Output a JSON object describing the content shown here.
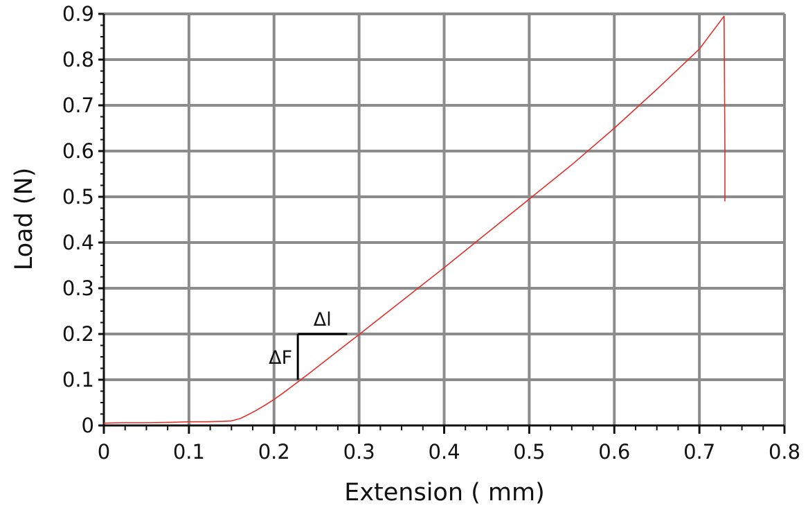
{
  "chart_data": {
    "type": "line",
    "title": "",
    "xlabel": "Extension ( mm)",
    "ylabel": "Load (N)",
    "xlim": [
      0,
      0.8
    ],
    "ylim": [
      0,
      0.9
    ],
    "x_ticks": [
      "0",
      "0.1",
      "0.2",
      "0.3",
      "0.4",
      "0.5",
      "0.6",
      "0.7",
      "0.8"
    ],
    "y_ticks": [
      "0",
      "0.1",
      "0.2",
      "0.3",
      "0.4",
      "0.5",
      "0.6",
      "0.7",
      "0.8",
      "0.9"
    ],
    "grid": true,
    "legend": "none",
    "colors": {
      "series": "#e0302a",
      "grid": "#8c8c8c",
      "axis": "#111111",
      "annotation": "#000000"
    },
    "series": [
      {
        "x": [
          0,
          0.02,
          0.05,
          0.08,
          0.1,
          0.12,
          0.14,
          0.15,
          0.16,
          0.17,
          0.18,
          0.19,
          0.2,
          0.21,
          0.22,
          0.23,
          0.24,
          0.26,
          0.28,
          0.3,
          0.35,
          0.4,
          0.45,
          0.5,
          0.55,
          0.6,
          0.65,
          0.7,
          0.729,
          0.73,
          0.73
        ],
        "y": [
          0.005,
          0.006,
          0.006,
          0.007,
          0.008,
          0.008,
          0.009,
          0.01,
          0.015,
          0.024,
          0.034,
          0.045,
          0.057,
          0.07,
          0.084,
          0.098,
          0.112,
          0.141,
          0.17,
          0.199,
          0.272,
          0.345,
          0.42,
          0.495,
          0.57,
          0.65,
          0.735,
          0.823,
          0.895,
          0.6,
          0.49
        ]
      }
    ],
    "annotations": {
      "delta_l": {
        "label": "Δl",
        "x": [
          0.228,
          0.286
        ],
        "y": 0.2
      },
      "delta_f": {
        "label": "ΔF",
        "x": 0.228,
        "y": [
          0.1,
          0.2
        ]
      }
    }
  }
}
